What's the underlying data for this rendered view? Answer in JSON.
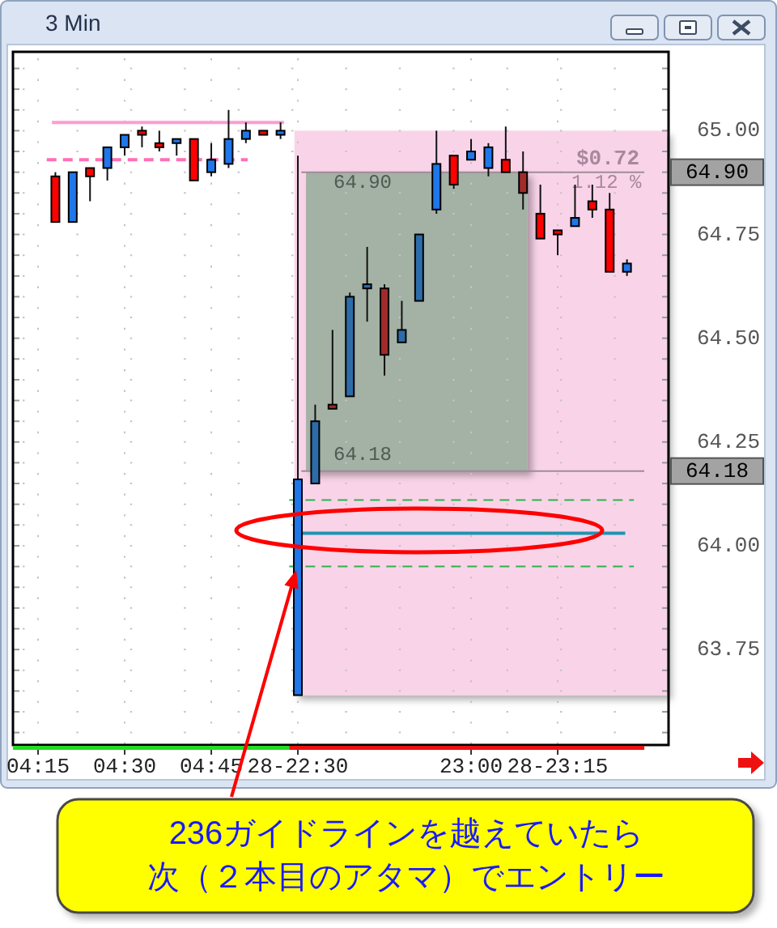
{
  "chart_data": {
    "type": "candlestick",
    "title": "3 Min",
    "categories": [
      "04:15",
      null,
      null,
      null,
      null,
      "04:30",
      null,
      null,
      null,
      null,
      "04:45",
      null,
      null,
      null,
      null,
      "28-22:30",
      null,
      null,
      null,
      null,
      null,
      null,
      null,
      null,
      null,
      "23:00",
      null,
      null,
      null,
      null,
      "28-23:15",
      null,
      null,
      null,
      null,
      null,
      null
    ],
    "ohlc": [
      null,
      [
        64.89,
        64.9,
        64.78,
        64.78
      ],
      [
        64.78,
        64.9,
        64.78,
        64.9
      ],
      [
        64.91,
        64.91,
        64.83,
        64.89
      ],
      [
        64.91,
        64.96,
        64.88,
        64.96
      ],
      [
        64.96,
        64.99,
        64.94,
        64.99
      ],
      [
        65.0,
        65.01,
        64.96,
        64.99
      ],
      [
        64.97,
        65.0,
        64.95,
        64.96
      ],
      [
        64.97,
        64.98,
        64.94,
        64.98
      ],
      [
        64.98,
        64.98,
        64.88,
        64.88
      ],
      [
        64.9,
        64.97,
        64.89,
        64.93
      ],
      [
        64.92,
        65.05,
        64.91,
        64.98
      ],
      [
        64.98,
        65.02,
        64.97,
        65.0
      ],
      [
        65.0,
        65.0,
        64.99,
        64.99
      ],
      [
        64.99,
        65.02,
        64.98,
        65.0
      ],
      [
        63.64,
        64.94,
        63.64,
        64.16
      ],
      [
        64.15,
        64.34,
        64.15,
        64.3
      ],
      [
        64.34,
        64.52,
        64.33,
        64.33
      ],
      [
        64.36,
        64.61,
        64.36,
        64.6
      ],
      [
        64.62,
        64.72,
        64.54,
        64.63
      ],
      [
        64.62,
        64.63,
        64.41,
        64.46
      ],
      [
        64.49,
        64.59,
        64.49,
        64.52
      ],
      [
        64.59,
        64.75,
        64.59,
        64.75
      ],
      [
        64.81,
        65.0,
        64.8,
        64.92
      ],
      [
        64.94,
        64.94,
        64.86,
        64.87
      ],
      [
        64.93,
        64.98,
        64.93,
        64.95
      ],
      [
        64.91,
        64.97,
        64.89,
        64.96
      ],
      [
        64.93,
        65.01,
        64.9,
        64.9
      ],
      [
        64.9,
        64.95,
        64.81,
        64.85
      ],
      [
        64.8,
        64.87,
        64.74,
        64.74
      ],
      [
        64.76,
        64.76,
        64.7,
        64.75
      ],
      [
        64.77,
        64.87,
        64.77,
        64.79
      ],
      [
        64.83,
        64.87,
        64.79,
        64.81
      ],
      [
        64.81,
        64.85,
        64.66,
        64.66
      ],
      [
        64.66,
        64.69,
        64.65,
        64.68
      ],
      null,
      null
    ],
    "colors": [
      null,
      "#ff0000",
      "#1f77ea",
      "#ff0000",
      "#1f77ea",
      "#1f77ea",
      "#ff0000",
      "#ff0000",
      "#1f77ea",
      "#ff0000",
      "#1f77ea",
      "#1f77ea",
      "#1f77ea",
      "#ff0000",
      "#1f77ea",
      "#1f77ea",
      "#2d6ca8",
      "#a12b2b",
      "#2d6ca8",
      "#2d6ca8",
      "#a12b2b",
      "#2d6ca8",
      "#2d6ca8",
      "#1f77ea",
      "#ff0000",
      "#1f77ea",
      "#1f77ea",
      "#ff0000",
      "#a12b2b",
      "#ff0000",
      "#ff0000",
      "#1f77ea",
      "#ff0000",
      "#ff0000",
      "#1f77ea",
      null,
      null
    ],
    "ylim": [
      63.52,
      65.19
    ],
    "yticks": [
      {
        "value": 63.55,
        "label": null
      },
      {
        "value": 63.6,
        "label": null
      },
      {
        "value": 63.65,
        "label": null
      },
      {
        "value": 63.7,
        "label": null
      },
      {
        "value": 63.75,
        "label": "63.75"
      },
      {
        "value": 63.8,
        "label": null
      },
      {
        "value": 63.85,
        "label": null
      },
      {
        "value": 63.9,
        "label": null
      },
      {
        "value": 63.95,
        "label": null
      },
      {
        "value": 64.0,
        "label": "64.00"
      },
      {
        "value": 64.05,
        "label": null
      },
      {
        "value": 64.1,
        "label": null
      },
      {
        "value": 64.15,
        "label": null
      },
      {
        "value": 64.2,
        "label": null
      },
      {
        "value": 64.25,
        "label": "64.25"
      },
      {
        "value": 64.3,
        "label": null
      },
      {
        "value": 64.35,
        "label": null
      },
      {
        "value": 64.4,
        "label": null
      },
      {
        "value": 64.45,
        "label": null
      },
      {
        "value": 64.5,
        "label": "64.50"
      },
      {
        "value": 64.55,
        "label": null
      },
      {
        "value": 64.6,
        "label": null
      },
      {
        "value": 64.65,
        "label": null
      },
      {
        "value": 64.7,
        "label": null
      },
      {
        "value": 64.75,
        "label": "64.75"
      },
      {
        "value": 64.8,
        "label": null
      },
      {
        "value": 64.85,
        "label": null
      },
      {
        "value": 64.9,
        "label": null
      },
      {
        "value": 64.95,
        "label": null
      },
      {
        "value": 65.0,
        "label": "65.00"
      },
      {
        "value": 65.05,
        "label": null
      },
      {
        "value": 65.1,
        "label": null
      },
      {
        "value": 65.15,
        "label": null
      }
    ],
    "grid": true,
    "bands": [
      {
        "axis": "y",
        "from": 63.64,
        "to": 65.0,
        "color": "#f9d4e9"
      },
      {
        "axis": "y",
        "from": 64.18,
        "to": 64.9,
        "color": "#a4b1a5"
      }
    ],
    "ref_lines": [
      {
        "axis": "y",
        "value": 65.02,
        "color": "#ff9ccf",
        "line_style": "solid"
      },
      {
        "axis": "y",
        "value": 64.93,
        "color": "#ff6fb5",
        "line_style": "dashed"
      },
      {
        "axis": "y",
        "value": 64.9,
        "label": "64.90",
        "color": "#9e8c98",
        "line_style": "solid"
      },
      {
        "axis": "y",
        "value": 64.18,
        "label": "64.18",
        "color": "#9e8c98",
        "line_style": "solid"
      },
      {
        "axis": "y",
        "value": 64.11,
        "color": "#2db34a",
        "line_style": "dashed"
      },
      {
        "axis": "y",
        "value": 64.03,
        "color": "#1f95b0",
        "line_style": "solid"
      },
      {
        "axis": "y",
        "value": 63.95,
        "color": "#2db34a",
        "line_style": "dashed"
      }
    ],
    "annotations": [
      "64.90",
      "64.18",
      "$0.72",
      "1.12 %",
      "236ガイドラインを越えていたら",
      "次（２本目のアタマ）でエントリー"
    ]
  }
}
